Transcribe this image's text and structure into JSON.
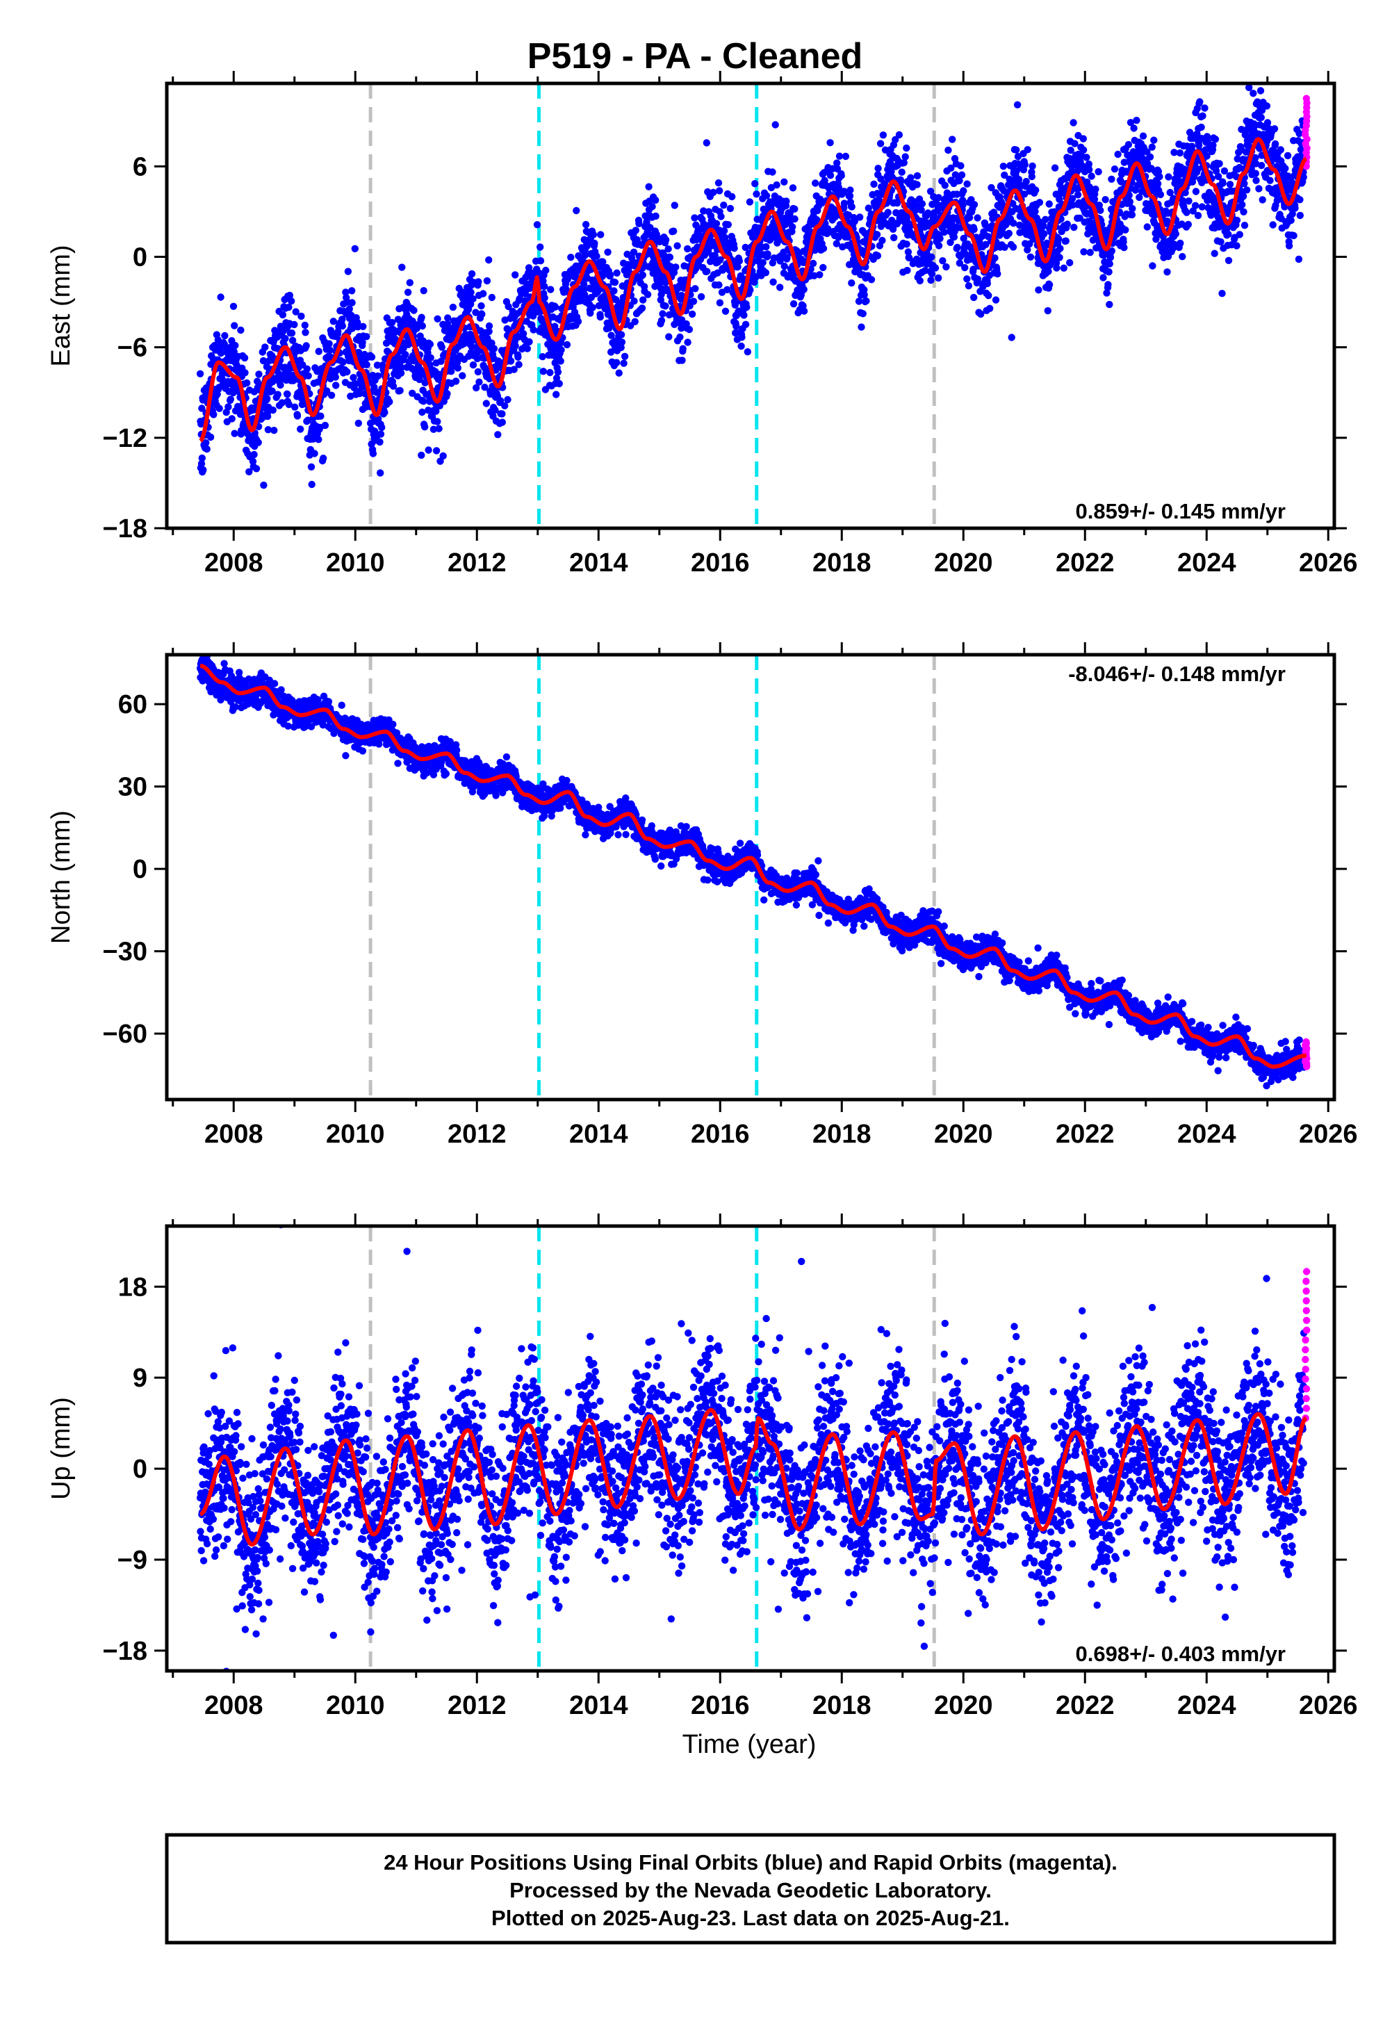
{
  "title": "P519  - PA - Cleaned",
  "xlabel": "Time (year)",
  "footer": [
    "24 Hour Positions Using Final Orbits (blue) and Rapid Orbits (magenta).",
    "Processed by the Nevada Geodetic Laboratory.",
    "Plotted on 2025-Aug-23. Last data on 2025-Aug-21."
  ],
  "colors": {
    "final": "#0000ff",
    "rapid": "#ff00ff",
    "model": "#ff0000",
    "break_equipment": "#c0c0c0",
    "break_other": "#00e5ee"
  },
  "chart_data": [
    {
      "type": "scatter",
      "ylabel": "East (mm)",
      "xlim": [
        2006.9,
        2026.1
      ],
      "ylim": [
        -18,
        11.5
      ],
      "xticks": [
        2008,
        2010,
        2012,
        2014,
        2016,
        2018,
        2020,
        2022,
        2024,
        2026
      ],
      "yticks": [
        -18,
        -12,
        -6,
        0,
        6
      ],
      "rate_label": "0.859+/- 0.145 mm/yr",
      "rate_position": "bottom-right",
      "breaks": [
        {
          "x": 2010.25,
          "kind": "equipment"
        },
        {
          "x": 2013.02,
          "kind": "other"
        },
        {
          "x": 2016.6,
          "kind": "other"
        },
        {
          "x": 2019.52,
          "kind": "equipment"
        }
      ],
      "data_start": 2007.45,
      "data_end": 2025.64,
      "rapid_start": 2025.6,
      "model": {
        "x": [
          2007.45,
          2007.75,
          2008.05,
          2008.3,
          2008.55,
          2008.85,
          2009.1,
          2009.3,
          2009.6,
          2009.85,
          2010.1,
          2010.35,
          2010.6,
          2010.85,
          2011.1,
          2011.35,
          2011.6,
          2011.85,
          2012.1,
          2012.35,
          2012.6,
          2012.9,
          2013.0,
          2013.02,
          2013.3,
          2013.6,
          2013.85,
          2014.1,
          2014.35,
          2014.6,
          2014.85,
          2015.1,
          2015.35,
          2015.6,
          2015.85,
          2016.1,
          2016.35,
          2016.6,
          2016.85,
          2017.1,
          2017.35,
          2017.6,
          2017.85,
          2018.1,
          2018.35,
          2018.6,
          2018.85,
          2019.1,
          2019.35,
          2019.52,
          2019.85,
          2020.1,
          2020.35,
          2020.6,
          2020.85,
          2021.1,
          2021.35,
          2021.6,
          2021.85,
          2022.1,
          2022.35,
          2022.6,
          2022.85,
          2023.1,
          2023.35,
          2023.6,
          2023.85,
          2024.1,
          2024.35,
          2024.6,
          2024.85,
          2025.1,
          2025.35,
          2025.64
        ],
        "y": [
          -12.2,
          -7.0,
          -8.0,
          -11.5,
          -8.0,
          -6.0,
          -8.0,
          -10.5,
          -7.0,
          -5.2,
          -7.5,
          -10.5,
          -6.5,
          -4.8,
          -7.0,
          -9.6,
          -5.8,
          -4.0,
          -6.0,
          -8.6,
          -5.0,
          -3.0,
          -1.3,
          -3.0,
          -5.5,
          -2.0,
          -0.3,
          -2.0,
          -4.8,
          -1.0,
          1.0,
          -1.0,
          -3.8,
          0.0,
          1.8,
          0.0,
          -2.8,
          1.0,
          3.0,
          1.0,
          -1.5,
          2.0,
          4.0,
          2.0,
          -0.5,
          3.0,
          5.0,
          3.0,
          0.5,
          2.0,
          3.6,
          1.5,
          -1.0,
          2.5,
          4.4,
          2.5,
          -0.3,
          3.0,
          5.4,
          3.5,
          0.5,
          4.0,
          6.2,
          4.0,
          1.5,
          4.5,
          7.0,
          4.8,
          2.2,
          5.5,
          7.8,
          5.8,
          3.5,
          6.5
        ],
        "color": "#ff0000"
      },
      "scatter": {
        "color": "#0000ff",
        "spread_mm": 1.6,
        "rapid_color": "#ff00ff",
        "rapid_range": [
          6.0,
          10.5
        ]
      }
    },
    {
      "type": "scatter",
      "ylabel": "North (mm)",
      "xlim": [
        2006.9,
        2026.1
      ],
      "ylim": [
        -84,
        78
      ],
      "xticks": [
        2008,
        2010,
        2012,
        2014,
        2016,
        2018,
        2020,
        2022,
        2024,
        2026
      ],
      "yticks": [
        -60,
        -30,
        0,
        30,
        60
      ],
      "rate_label": "-8.046+/- 0.148 mm/yr",
      "rate_position": "top-right",
      "breaks": [
        {
          "x": 2010.25,
          "kind": "equipment"
        },
        {
          "x": 2013.02,
          "kind": "other"
        },
        {
          "x": 2016.6,
          "kind": "other"
        },
        {
          "x": 2019.52,
          "kind": "equipment"
        }
      ],
      "data_start": 2007.45,
      "data_end": 2025.64,
      "rapid_start": 2025.6,
      "model": {
        "x": [
          2007.45,
          2007.8,
          2008.1,
          2008.5,
          2008.8,
          2009.1,
          2009.5,
          2009.8,
          2010.1,
          2010.5,
          2010.8,
          2011.1,
          2011.5,
          2011.8,
          2012.1,
          2012.5,
          2012.8,
          2013.1,
          2013.5,
          2013.8,
          2014.1,
          2014.5,
          2014.8,
          2015.1,
          2015.5,
          2015.8,
          2016.1,
          2016.5,
          2016.8,
          2017.1,
          2017.5,
          2017.8,
          2018.1,
          2018.5,
          2018.8,
          2019.1,
          2019.5,
          2019.8,
          2020.1,
          2020.5,
          2020.8,
          2021.1,
          2021.5,
          2021.8,
          2022.1,
          2022.5,
          2022.8,
          2023.1,
          2023.5,
          2023.8,
          2024.1,
          2024.5,
          2024.8,
          2025.1,
          2025.64
        ],
        "y": [
          74,
          68,
          64,
          66,
          59,
          56,
          58,
          51,
          48,
          50,
          43,
          40,
          42,
          35,
          32,
          34,
          27,
          24,
          28,
          19,
          16,
          20,
          11,
          8,
          10,
          3,
          0,
          4,
          -5,
          -8,
          -5,
          -13,
          -16,
          -13,
          -21,
          -24,
          -21,
          -29,
          -32,
          -29,
          -37,
          -40,
          -37,
          -45,
          -48,
          -45,
          -53,
          -56,
          -53,
          -61,
          -64,
          -61,
          -69,
          -72,
          -68
        ],
        "color": "#ff0000"
      },
      "scatter": {
        "color": "#0000ff",
        "spread_mm": 2.5,
        "rapid_color": "#ff00ff",
        "rapid_range": [
          -72,
          -63
        ]
      }
    },
    {
      "type": "scatter",
      "ylabel": "Up (mm)",
      "xlim": [
        2006.9,
        2026.1
      ],
      "ylim": [
        -20,
        24
      ],
      "xticks": [
        2008,
        2010,
        2012,
        2014,
        2016,
        2018,
        2020,
        2022,
        2024,
        2026
      ],
      "yticks": [
        -18,
        -9,
        0,
        9,
        18
      ],
      "rate_label": "0.698+/- 0.403 mm/yr",
      "rate_position": "bottom-right",
      "breaks": [
        {
          "x": 2010.25,
          "kind": "equipment"
        },
        {
          "x": 2013.02,
          "kind": "other"
        },
        {
          "x": 2016.6,
          "kind": "other"
        },
        {
          "x": 2019.52,
          "kind": "equipment"
        }
      ],
      "data_start": 2007.45,
      "data_end": 2025.64,
      "rapid_start": 2025.6,
      "model": {
        "x": [
          2007.45,
          2007.85,
          2008.3,
          2008.85,
          2009.3,
          2009.85,
          2010.3,
          2010.85,
          2011.3,
          2011.85,
          2012.3,
          2012.85,
          2013.3,
          2013.85,
          2014.3,
          2014.85,
          2015.3,
          2015.85,
          2016.3,
          2016.58,
          2016.62,
          2016.85,
          2017.3,
          2017.85,
          2018.3,
          2018.85,
          2019.3,
          2019.5,
          2019.55,
          2019.85,
          2020.3,
          2020.85,
          2021.3,
          2021.85,
          2022.3,
          2022.85,
          2023.3,
          2023.85,
          2024.3,
          2024.85,
          2025.3,
          2025.64
        ],
        "y": [
          -4.5,
          1.2,
          -7.5,
          2.0,
          -6.5,
          2.8,
          -6.5,
          3.2,
          -6.0,
          3.8,
          -5.5,
          4.3,
          -4.5,
          4.8,
          -3.8,
          5.2,
          -3.0,
          5.8,
          -2.5,
          2.0,
          5.0,
          2.5,
          -6.0,
          3.4,
          -5.5,
          3.6,
          -5.0,
          -4.5,
          0.8,
          2.5,
          -6.5,
          3.2,
          -6.0,
          3.6,
          -5.0,
          4.2,
          -4.0,
          4.8,
          -3.5,
          5.4,
          -2.5,
          5.0
        ],
        "color": "#ff0000"
      },
      "scatter": {
        "color": "#0000ff",
        "spread_mm": 4.0,
        "rapid_color": "#ff00ff",
        "rapid_range": [
          5.0,
          19.5
        ]
      }
    }
  ]
}
